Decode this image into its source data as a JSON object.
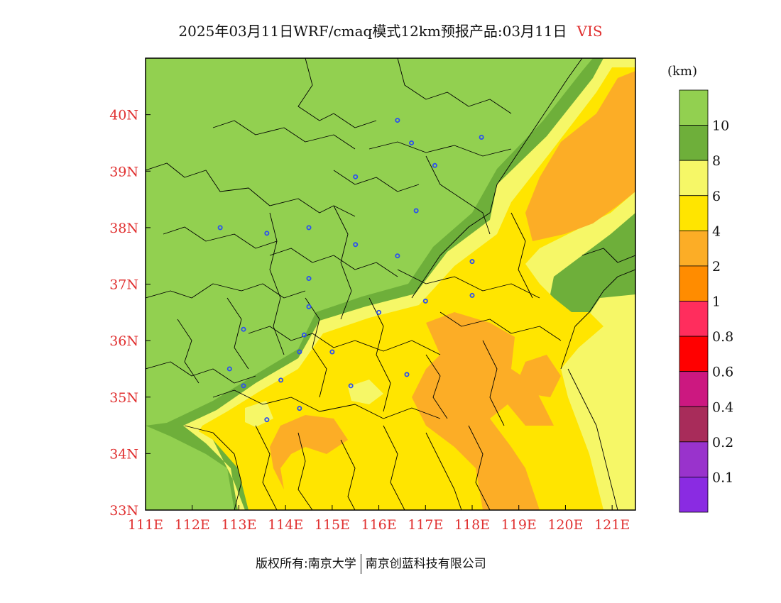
{
  "title": {
    "main": "2025年03月11日WRF/cmaq模式12km预报产品:03月11日",
    "variable": "VIS"
  },
  "map": {
    "lon_range": [
      111,
      121.5
    ],
    "lat_range": [
      33,
      41
    ],
    "lon_ticks": [
      "111E",
      "112E",
      "113E",
      "114E",
      "115E",
      "116E",
      "117E",
      "118E",
      "119E",
      "120E",
      "121E"
    ],
    "lat_ticks": [
      "33N",
      "34N",
      "35N",
      "36N",
      "37N",
      "38N",
      "39N",
      "40N"
    ],
    "tick_color": "#e03030",
    "cities": [
      [
        116.4,
        39.9
      ],
      [
        117.2,
        39.1
      ],
      [
        118.2,
        39.6
      ],
      [
        116.7,
        39.5
      ],
      [
        115.5,
        38.9
      ],
      [
        116.8,
        38.3
      ],
      [
        114.5,
        38.0
      ],
      [
        112.6,
        38.0
      ],
      [
        113.6,
        37.9
      ],
      [
        115.5,
        37.7
      ],
      [
        116.4,
        37.5
      ],
      [
        114.5,
        37.1
      ],
      [
        114.5,
        36.6
      ],
      [
        116.0,
        36.5
      ],
      [
        117.0,
        36.7
      ],
      [
        118.0,
        37.4
      ],
      [
        118.0,
        36.8
      ],
      [
        114.4,
        36.1
      ],
      [
        113.1,
        36.2
      ],
      [
        114.3,
        35.8
      ],
      [
        115.0,
        35.8
      ],
      [
        112.8,
        35.5
      ],
      [
        113.1,
        35.2
      ],
      [
        113.9,
        35.3
      ],
      [
        115.4,
        35.2
      ],
      [
        116.6,
        35.4
      ],
      [
        114.3,
        34.8
      ],
      [
        113.6,
        34.6
      ]
    ],
    "city_color": "#2b50f0"
  },
  "legend": {
    "unit": "(km)",
    "levels": [
      {
        "label": "10",
        "color": "#92d050"
      },
      {
        "label": "8",
        "color": "#6eaf3a"
      },
      {
        "label": "6",
        "color": "#f6f767"
      },
      {
        "label": "4",
        "color": "#ffe500"
      },
      {
        "label": "2",
        "color": "#fcad26"
      },
      {
        "label": "1",
        "color": "#ff8c00"
      },
      {
        "label": "0.8",
        "color": "#ff2d5d"
      },
      {
        "label": "0.6",
        "color": "#ff0000"
      },
      {
        "label": "0.4",
        "color": "#cc1880"
      },
      {
        "label": "0.2",
        "color": "#a82c5a"
      },
      {
        "label": "0.1",
        "color": "#9933cc"
      },
      {
        "label": "",
        "color": "#8a2be2"
      }
    ]
  },
  "footer": {
    "left": "版权所有:南京大学",
    "right": "南京创蓝科技有限公司"
  }
}
